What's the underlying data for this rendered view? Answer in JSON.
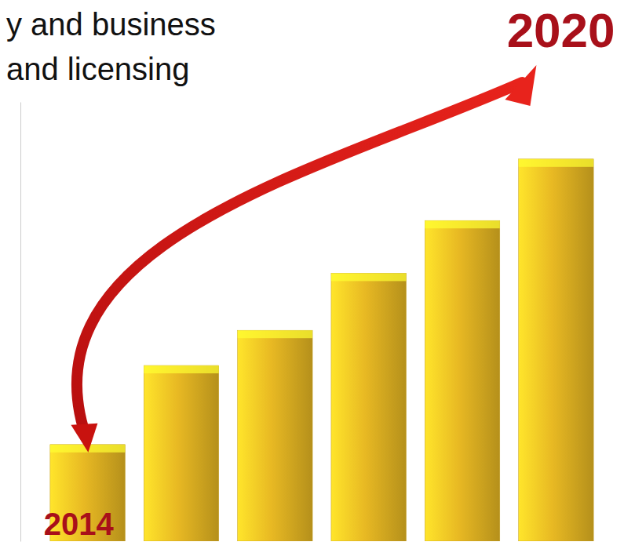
{
  "chart_data": {
    "type": "bar",
    "annotations": [
      "y and business",
      "and licensing"
    ],
    "categories": [
      "2014",
      null,
      null,
      null,
      null,
      "2020"
    ],
    "values": [
      22,
      40,
      48,
      61,
      73,
      87
    ],
    "color": "#e8b923",
    "ylim": [
      0,
      100
    ],
    "tick_labels": false
  }
}
